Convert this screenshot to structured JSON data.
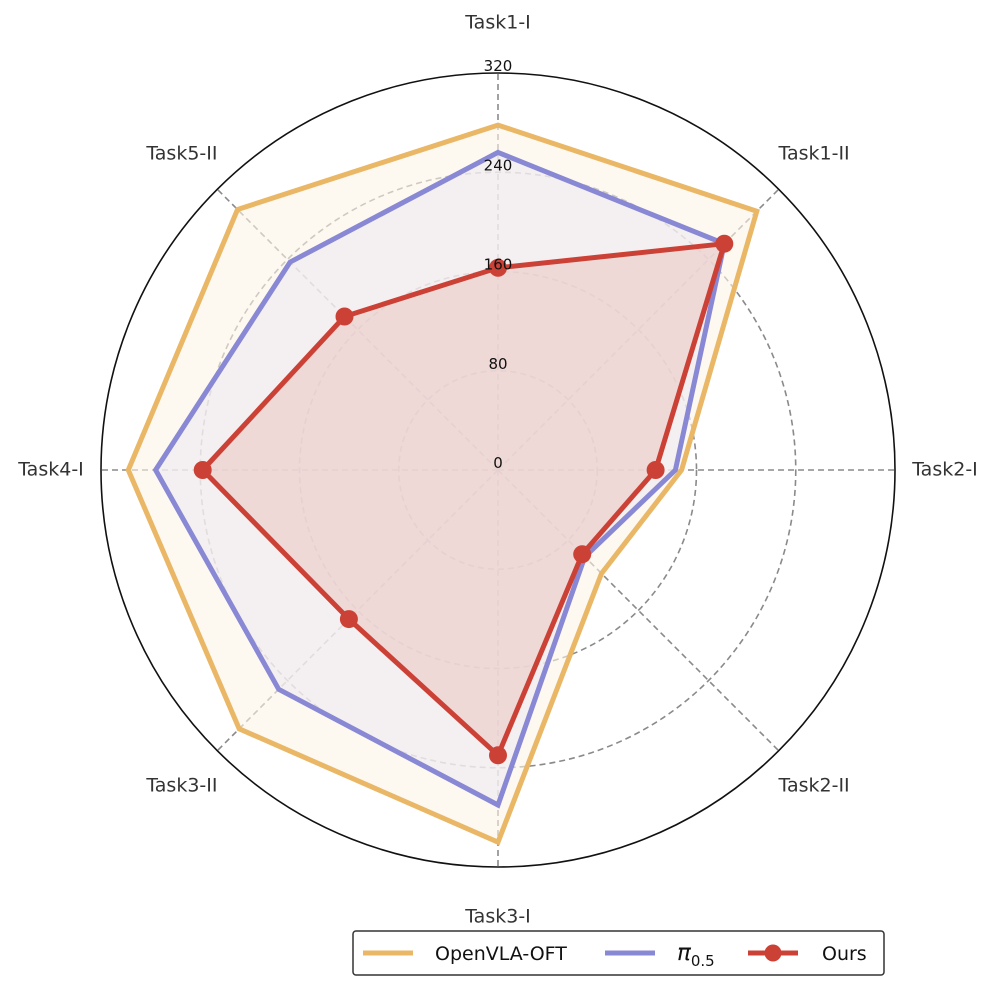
{
  "chart_data": {
    "type": "radar",
    "axes": [
      "Task1-I",
      "Task1-II",
      "Task2-I",
      "Task2-II",
      "Task3-I",
      "Task3-II",
      "Task4-I",
      "Task5-II"
    ],
    "rlim": [
      0,
      320
    ],
    "rticks": [
      0,
      80,
      160,
      240,
      320
    ],
    "rtick_labels": [
      "0",
      "80",
      "160",
      "240",
      "320"
    ],
    "grid": true,
    "legend_position": "bottom-right",
    "series": [
      {
        "name": "OpenVLA-OFT",
        "values": [
          278,
          295,
          148,
          118,
          300,
          295,
          298,
          297
        ],
        "color": "#E9B765",
        "fill": "#FBF3E6",
        "markers": false
      },
      {
        "name": "π",
        "name_sub": "0.5",
        "values": [
          256,
          258,
          143,
          99,
          270,
          250,
          276,
          237
        ],
        "color": "#8888D4",
        "fill": "#EFEAF1",
        "markers": false
      },
      {
        "name": "Ours",
        "values": [
          163,
          258,
          127,
          96,
          230,
          170,
          238,
          175
        ],
        "color": "#CC4136",
        "fill": "#E9C9C6",
        "markers": true
      }
    ]
  }
}
